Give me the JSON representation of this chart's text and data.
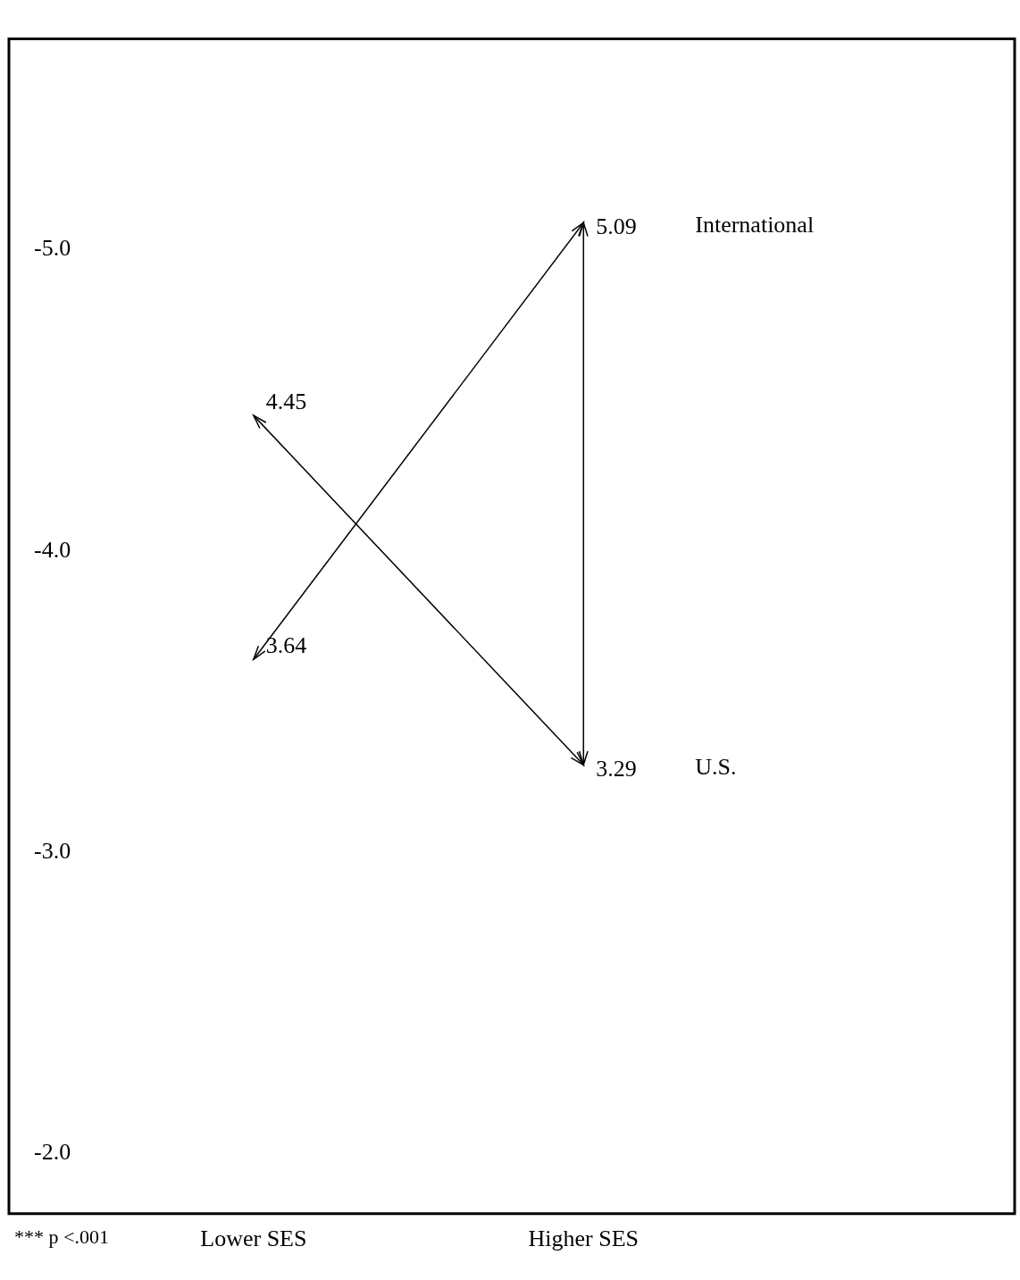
{
  "chart_data": {
    "type": "line",
    "categories": [
      "Lower SES",
      "Higher SES"
    ],
    "series": [
      {
        "name": "International",
        "color": "#000000",
        "values": [
          -3.64,
          -5.09
        ]
      },
      {
        "name": "U.S.",
        "color": "#000000",
        "values": [
          -4.45,
          -3.29
        ]
      }
    ],
    "ylim": [
      -1.8,
      -5.7
    ],
    "yticks": [
      {
        "value": -5.0,
        "label": "-5.0"
      },
      {
        "value": -4.0,
        "label": "-4.0"
      },
      {
        "value": -3.0,
        "label": "-3.0"
      },
      {
        "value": -2.0,
        "label": "-2.0"
      }
    ],
    "annotations": [
      "*** p <.001",
      {
        "text": "3.64",
        "x": "Lower SES",
        "y": -3.64
      },
      {
        "text": "5.09",
        "x": "Higher SES",
        "y": -5.09
      },
      {
        "text": "4.45",
        "x": "Lower SES",
        "y": -4.45
      },
      {
        "text": "3.29",
        "x": "Higher SES",
        "y": -3.29
      }
    ],
    "grid": false,
    "legend": false,
    "marker": "none",
    "line_style": "solid"
  }
}
